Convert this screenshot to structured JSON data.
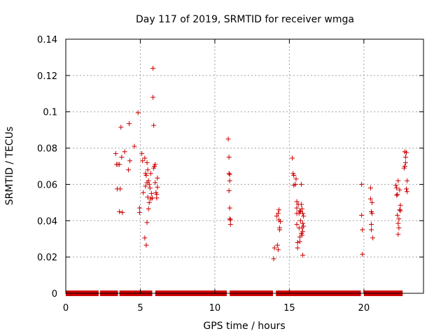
{
  "chart_data": {
    "type": "scatter",
    "title": "Day 117 of 2019, SRMTID for receiver wmga",
    "xlabel": "GPS time / hours",
    "ylabel": "SRMTID / TECUs",
    "xlim": [
      0,
      24
    ],
    "ylim": [
      0,
      0.14
    ],
    "grid": true,
    "marker": "+",
    "color": "#cc0000",
    "x_ticks": [
      0,
      5,
      10,
      15,
      20
    ],
    "x_tick_labels": [
      "0",
      "5",
      "10",
      "15",
      "20"
    ],
    "y_ticks": [
      0,
      0.02,
      0.04,
      0.06,
      0.08,
      0.1,
      0.12,
      0.14
    ],
    "y_tick_labels": [
      "0",
      "0.02",
      "0.04",
      "0.06",
      "0.08",
      "0.1",
      "0.12",
      "0.14"
    ],
    "zero_baseline_ranges": [
      [
        0.0,
        2.2
      ],
      [
        2.3,
        3.5
      ],
      [
        3.6,
        5.8
      ],
      [
        6.0,
        10.8
      ],
      [
        11.0,
        13.9
      ],
      [
        14.1,
        19.8
      ],
      [
        20.0,
        22.6
      ]
    ],
    "series": [
      {
        "name": "SRMTID",
        "points": [
          [
            3.35,
            0.077
          ],
          [
            3.4,
            0.071
          ],
          [
            3.45,
            0.0575
          ],
          [
            3.5,
            0.071
          ],
          [
            3.6,
            0.071
          ],
          [
            3.6,
            0.045
          ],
          [
            3.65,
            0.0575
          ],
          [
            3.7,
            0.0915
          ],
          [
            3.75,
            0.075
          ],
          [
            3.8,
            0.0445
          ],
          [
            3.95,
            0.078
          ],
          [
            4.2,
            0.068
          ],
          [
            4.25,
            0.0935
          ],
          [
            4.3,
            0.073
          ],
          [
            4.6,
            0.081
          ],
          [
            4.85,
            0.0995
          ],
          [
            4.95,
            0.047
          ],
          [
            4.95,
            0.0445
          ],
          [
            5.1,
            0.077
          ],
          [
            5.15,
            0.073
          ],
          [
            5.2,
            0.0555
          ],
          [
            5.3,
            0.0745
          ],
          [
            5.3,
            0.0305
          ],
          [
            5.35,
            0.066
          ],
          [
            5.35,
            0.059
          ],
          [
            5.4,
            0.065
          ],
          [
            5.4,
            0.0265
          ],
          [
            5.45,
            0.072
          ],
          [
            5.45,
            0.061
          ],
          [
            5.45,
            0.039
          ],
          [
            5.5,
            0.068
          ],
          [
            5.5,
            0.053
          ],
          [
            5.55,
            0.062
          ],
          [
            5.55,
            0.0465
          ],
          [
            5.6,
            0.06
          ],
          [
            5.6,
            0.05
          ],
          [
            5.65,
            0.058
          ],
          [
            5.7,
            0.066
          ],
          [
            5.7,
            0.052
          ],
          [
            5.75,
            0.055
          ],
          [
            5.8,
            0.0525
          ],
          [
            5.85,
            0.124
          ],
          [
            5.85,
            0.108
          ],
          [
            5.9,
            0.0925
          ],
          [
            5.9,
            0.069
          ],
          [
            5.95,
            0.07
          ],
          [
            6.0,
            0.071
          ],
          [
            6.0,
            0.061
          ],
          [
            6.05,
            0.0555
          ],
          [
            6.1,
            0.0525
          ],
          [
            6.1,
            0.0545
          ],
          [
            6.15,
            0.0635
          ],
          [
            6.15,
            0.0585
          ],
          [
            10.9,
            0.085
          ],
          [
            10.95,
            0.075
          ],
          [
            10.95,
            0.066
          ],
          [
            10.95,
            0.0565
          ],
          [
            11.0,
            0.0655
          ],
          [
            11.0,
            0.062
          ],
          [
            11.0,
            0.047
          ],
          [
            11.0,
            0.041
          ],
          [
            11.05,
            0.0405
          ],
          [
            11.05,
            0.038
          ],
          [
            13.95,
            0.019
          ],
          [
            14.0,
            0.025
          ],
          [
            14.15,
            0.0425
          ],
          [
            14.2,
            0.0265
          ],
          [
            14.25,
            0.044
          ],
          [
            14.25,
            0.024
          ],
          [
            14.3,
            0.046
          ],
          [
            14.3,
            0.0405
          ],
          [
            14.35,
            0.035
          ],
          [
            14.35,
            0.036
          ],
          [
            14.4,
            0.0395
          ],
          [
            15.2,
            0.0745
          ],
          [
            15.25,
            0.066
          ],
          [
            15.3,
            0.065
          ],
          [
            15.3,
            0.0595
          ],
          [
            15.4,
            0.06
          ],
          [
            15.45,
            0.063
          ],
          [
            15.5,
            0.0505
          ],
          [
            15.5,
            0.047
          ],
          [
            15.5,
            0.044
          ],
          [
            15.5,
            0.038
          ],
          [
            15.55,
            0.028
          ],
          [
            15.55,
            0.025
          ],
          [
            15.6,
            0.049
          ],
          [
            15.65,
            0.044
          ],
          [
            15.65,
            0.036
          ],
          [
            15.7,
            0.0455
          ],
          [
            15.7,
            0.031
          ],
          [
            15.7,
            0.0285
          ],
          [
            15.75,
            0.045
          ],
          [
            15.75,
            0.04
          ],
          [
            15.8,
            0.06
          ],
          [
            15.8,
            0.049
          ],
          [
            15.8,
            0.033
          ],
          [
            15.85,
            0.0465
          ],
          [
            15.85,
            0.036
          ],
          [
            15.85,
            0.032
          ],
          [
            15.9,
            0.044
          ],
          [
            15.9,
            0.0385
          ],
          [
            15.9,
            0.034
          ],
          [
            15.9,
            0.021
          ],
          [
            15.95,
            0.0425
          ],
          [
            15.95,
            0.037
          ],
          [
            19.85,
            0.06
          ],
          [
            19.85,
            0.043
          ],
          [
            19.9,
            0.035
          ],
          [
            19.9,
            0.0215
          ],
          [
            20.45,
            0.058
          ],
          [
            20.45,
            0.052
          ],
          [
            20.5,
            0.045
          ],
          [
            20.5,
            0.038
          ],
          [
            20.5,
            0.035
          ],
          [
            20.55,
            0.05
          ],
          [
            20.55,
            0.044
          ],
          [
            20.6,
            0.0305
          ],
          [
            22.15,
            0.0595
          ],
          [
            22.2,
            0.058
          ],
          [
            22.2,
            0.054
          ],
          [
            22.25,
            0.0545
          ],
          [
            22.25,
            0.043
          ],
          [
            22.3,
            0.062
          ],
          [
            22.3,
            0.0385
          ],
          [
            22.3,
            0.0325
          ],
          [
            22.35,
            0.041
          ],
          [
            22.35,
            0.036
          ],
          [
            22.4,
            0.057
          ],
          [
            22.4,
            0.046
          ],
          [
            22.45,
            0.0485
          ],
          [
            22.45,
            0.0455
          ],
          [
            22.7,
            0.069
          ],
          [
            22.75,
            0.078
          ],
          [
            22.75,
            0.07
          ],
          [
            22.8,
            0.075
          ],
          [
            22.8,
            0.072
          ],
          [
            22.85,
            0.0775
          ],
          [
            22.85,
            0.0575
          ],
          [
            22.9,
            0.062
          ],
          [
            22.9,
            0.056
          ]
        ]
      }
    ]
  }
}
